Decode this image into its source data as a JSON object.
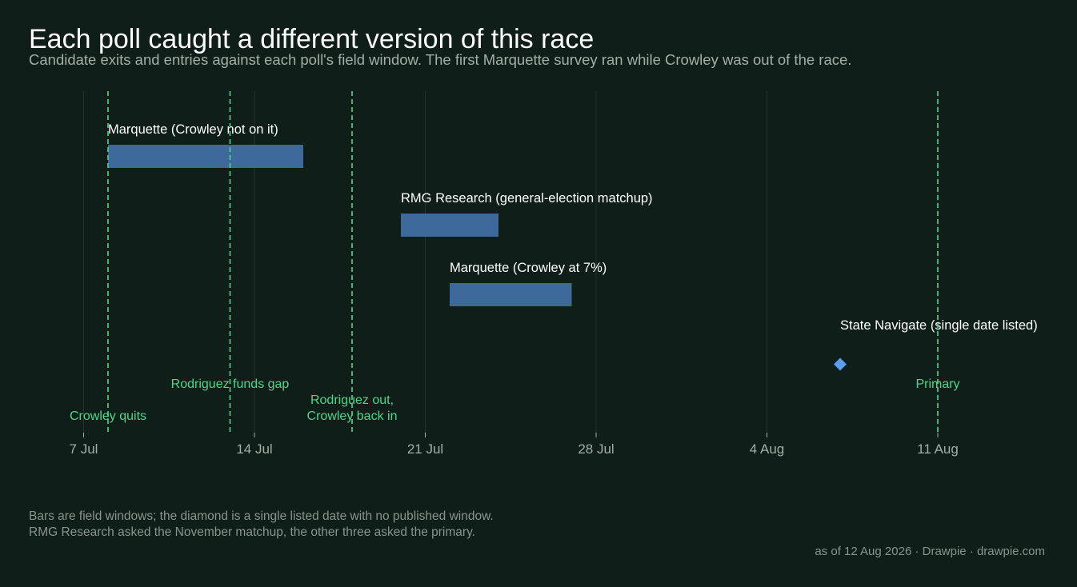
{
  "title": "Each poll caught a different version of this race",
  "subtitle": "Candidate exits and entries against each poll's field window. The first Marquette survey ran while Crowley was out of the race.",
  "footnote": [
    "Bars are field windows; the diamond is a single listed date with no published window.",
    "RMG Research asked the November matchup, the other three asked the primary."
  ],
  "credit": "as of 12 Aug 2026  ·  Drawpie · drawpie.com",
  "colors": {
    "background": "#0f1e18",
    "bar": "#3d6a9a",
    "diamond": "#5b9ef0",
    "event": "#4fd68a",
    "gridline": "#24332d",
    "tick_text": "#a3aea9",
    "label_text": "#ffffff"
  },
  "chart_data": {
    "type": "timeline",
    "x_range": [
      "2026-07-06",
      "2026-08-15"
    ],
    "x_ticks": [
      {
        "date": "2026-07-07",
        "label": "7 Jul"
      },
      {
        "date": "2026-07-14",
        "label": "14 Jul"
      },
      {
        "date": "2026-07-21",
        "label": "21 Jul"
      },
      {
        "date": "2026-07-28",
        "label": "28 Jul"
      },
      {
        "date": "2026-08-04",
        "label": "4 Aug"
      },
      {
        "date": "2026-08-11",
        "label": "11 Aug"
      }
    ],
    "polls": [
      {
        "label": "Marquette  (Crowley not on it)",
        "start": "2026-07-08",
        "end": "2026-07-16"
      },
      {
        "label": "RMG Research  (general-election matchup)",
        "start": "2026-07-20",
        "end": "2026-07-24"
      },
      {
        "label": "Marquette  (Crowley at 7%)",
        "start": "2026-07-22",
        "end": "2026-07-27"
      },
      {
        "label": "State Navigate  (single date listed)",
        "date": "2026-08-07"
      }
    ],
    "events": [
      {
        "date": "2026-07-08",
        "label": [
          "Crowley quits"
        ]
      },
      {
        "date": "2026-07-13",
        "label": [
          "Rodriguez funds gap"
        ]
      },
      {
        "date": "2026-07-18",
        "label": [
          "Rodriguez out,",
          "Crowley back in"
        ]
      },
      {
        "date": "2026-08-11",
        "label": [
          "Primary"
        ]
      }
    ]
  }
}
